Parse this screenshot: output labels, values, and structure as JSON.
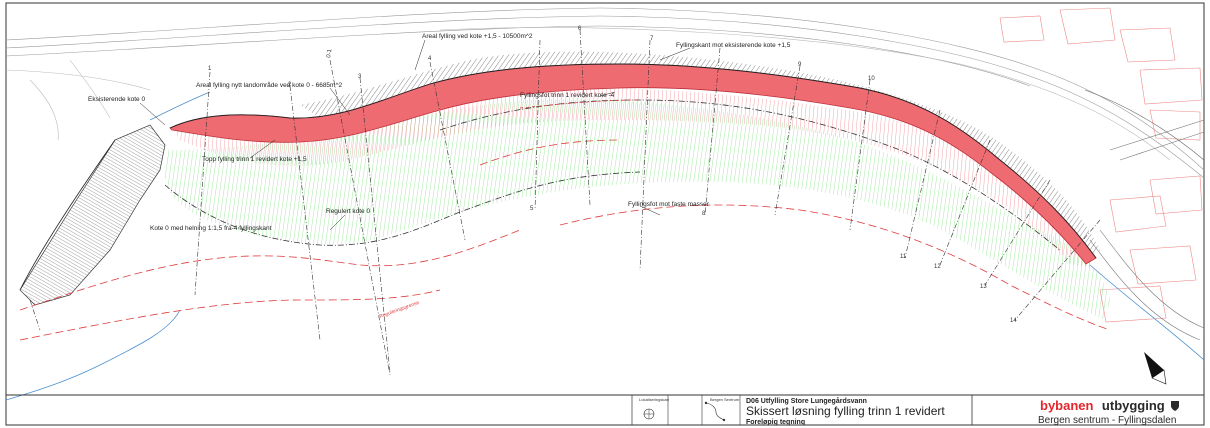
{
  "annotations": {
    "eksisterende_kote": "Eksisterende kote 0",
    "areal_nytt_land": "Areal fylling nytt landområde ved kote 0 - 6685m^2",
    "areal_fylling": "Areal fylling ved kote +1,5 - 10500m^2",
    "fyllingskant": "Fyllingskant mot eksisterende kote +1,5",
    "fyllingsfot_trinn": "Fyllingsfot trinn 1 revidert kote -4",
    "topp_fylling": "Topp fylling trinn 1 revidert kote +1,5",
    "regulert_kote": "Regulert kote 0",
    "kote_helning": "Kote 0 med helning 1:1,5 fra-4 fyllingskant",
    "fyllingsfot_faste": "Fyllingsfot mot faste masser",
    "reguleringsgrense": "Reguleringsgrense"
  },
  "sections": [
    "0-1",
    "1",
    "2",
    "3",
    "4",
    "5",
    "6",
    "7",
    "8",
    "9",
    "10",
    "11",
    "12",
    "13",
    "14"
  ],
  "title_block": {
    "locator_label": "Lokaliseringskart",
    "bergen_label": "Bergen Sentrum",
    "project": "D06 Utfylling Store Lungegårdsvann",
    "title": "Skissert løsning fylling trinn 1 revidert",
    "subtitle": "Foreløpig tegning",
    "brand_part1": "bybanen",
    "brand_part2": "utbygging",
    "brand_project": "Bergen sentrum - Fyllingsdalen"
  },
  "colors": {
    "fill_red": "#ee6b72",
    "hatch_green": "#8fe38f",
    "hatch_red": "#e05a60",
    "brand_red": "#e4262d"
  }
}
